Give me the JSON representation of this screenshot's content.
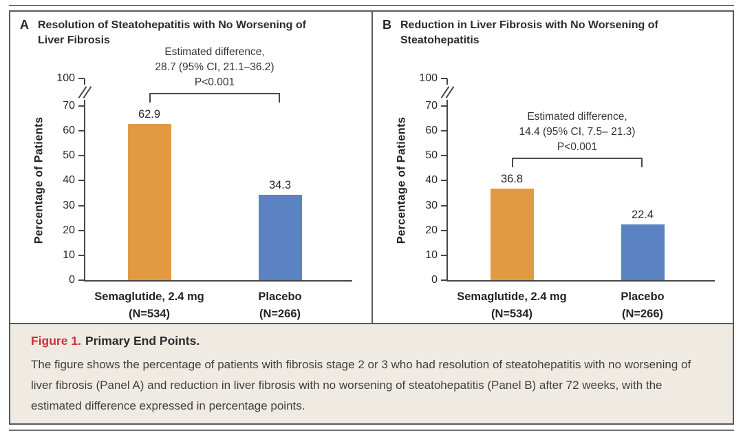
{
  "chart_data": [
    {
      "type": "bar",
      "panel_letter": "A",
      "title": "Resolution of Steatohepatitis with No Worsening of Liver Fibrosis",
      "ylabel": "Percentage of Patients",
      "yticks": [
        100,
        70,
        60,
        50,
        40,
        30,
        20,
        10,
        0
      ],
      "ylim": [
        0,
        100
      ],
      "axis_break_between": [
        70,
        100
      ],
      "grid": "off",
      "categories": [
        {
          "label": "Semaglutide, 2.4 mg",
          "sublabel": "(N=534)"
        },
        {
          "label": "Placebo",
          "sublabel": "(N=266)"
        }
      ],
      "values": [
        62.9,
        34.3
      ],
      "bar_colors": [
        "#E19A42",
        "#5B83C3"
      ],
      "annotation": [
        "Estimated difference,",
        "28.7 (95% CI, 21.1–36.2)",
        "P<0.001"
      ]
    },
    {
      "type": "bar",
      "panel_letter": "B",
      "title": "Reduction in Liver Fibrosis with No Worsening of Steatohepatitis",
      "ylabel": "Percentage of Patients",
      "yticks": [
        100,
        70,
        60,
        50,
        40,
        30,
        20,
        10,
        0
      ],
      "ylim": [
        0,
        100
      ],
      "axis_break_between": [
        70,
        100
      ],
      "grid": "off",
      "categories": [
        {
          "label": "Semaglutide, 2.4 mg",
          "sublabel": "(N=534)"
        },
        {
          "label": "Placebo",
          "sublabel": "(N=266)"
        }
      ],
      "values": [
        36.8,
        22.4
      ],
      "bar_colors": [
        "#E19A42",
        "#5B83C3"
      ],
      "annotation": [
        "Estimated difference,",
        "14.4 (95% CI, 7.5– 21.3)",
        "P<0.001"
      ]
    }
  ],
  "caption": {
    "label": "Figure 1.",
    "title": "Primary End Points.",
    "body": "The figure shows the percentage of patients with fibrosis stage 2 or 3 who had resolution of steatohepatitis with no worsening of liver fibrosis (Panel A) and reduction in liver fibrosis with no worsening of steatohepatitis (Panel B) after 72 weeks, with the estimated difference expressed in percentage points."
  },
  "colors": {
    "semaglutide_bar": "#E19A42",
    "placebo_bar": "#5B83C3",
    "axis": "#454648",
    "caption_background": "#EFEBE3",
    "figure_label_red": "#C8323A",
    "border": "#595A5C"
  }
}
